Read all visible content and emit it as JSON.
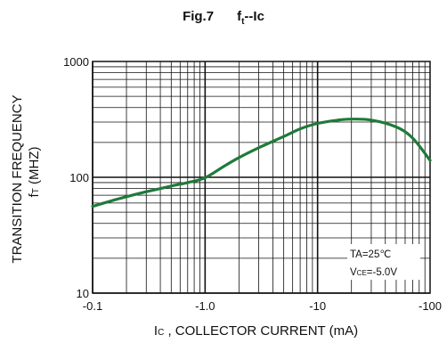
{
  "figure": {
    "number": "Fig.7",
    "title_main": "f",
    "title_sub": "t",
    "title_rest": "--Ic"
  },
  "chart_data": {
    "type": "line",
    "x_scale": "log",
    "y_scale": "log",
    "xlim": [
      0.1,
      100
    ],
    "ylim": [
      10,
      1000
    ],
    "x_ticks": [
      {
        "value": 0.1,
        "label": "-0.1"
      },
      {
        "value": 1,
        "label": "-1.0"
      },
      {
        "value": 10,
        "label": "-10"
      },
      {
        "value": 100,
        "label": "-100"
      }
    ],
    "y_ticks": [
      {
        "value": 10,
        "label": "10"
      },
      {
        "value": 100,
        "label": "100"
      },
      {
        "value": 1000,
        "label": "1000"
      }
    ],
    "xlabel": {
      "main": "I",
      "sub": "C",
      "rest": " , COLLECTOR CURRENT (mA)"
    },
    "ylabel": {
      "line1": "TRANSITION FREQUENCY",
      "line2_main": "f",
      "line2_sub": "T",
      "line2_rest": " (MHZ)"
    },
    "grid": true,
    "series": [
      {
        "color": "#1f7a3a",
        "x": [
          0.1,
          0.15,
          0.2,
          0.3,
          0.5,
          0.7,
          1.0,
          1.5,
          2,
          3,
          5,
          7,
          10,
          15,
          20,
          30,
          50,
          70,
          100
        ],
        "y": [
          56,
          63,
          68,
          75,
          84,
          90,
          99,
          126,
          148,
          180,
          225,
          262,
          292,
          311,
          318,
          312,
          272,
          218,
          140
        ]
      }
    ],
    "annotations": [
      {
        "main": "TA=25",
        "unit": "℃"
      },
      {
        "main": "V",
        "sub": "CE",
        "rest": "=-5.0V"
      }
    ]
  }
}
